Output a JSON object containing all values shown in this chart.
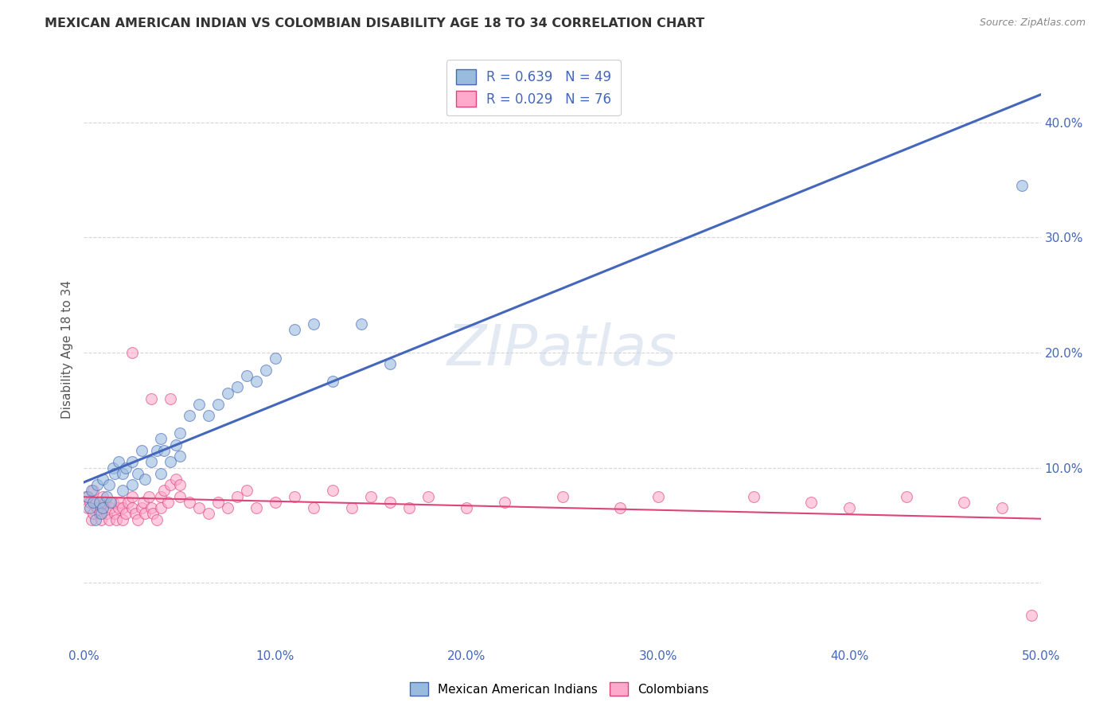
{
  "title": "MEXICAN AMERICAN INDIAN VS COLOMBIAN DISABILITY AGE 18 TO 34 CORRELATION CHART",
  "source": "Source: ZipAtlas.com",
  "ylabel": "Disability Age 18 to 34",
  "xlim": [
    0.0,
    0.5
  ],
  "ylim": [
    -0.055,
    0.46
  ],
  "blue_color": "#99BBDD",
  "pink_color": "#FFAACC",
  "blue_line_color": "#4466BB",
  "pink_line_color": "#DD4477",
  "legend1_R": "0.639",
  "legend1_N": "49",
  "legend2_R": "0.029",
  "legend2_N": "76",
  "watermark_text": "ZIPatlas",
  "mexican_x": [
    0.002,
    0.003,
    0.004,
    0.005,
    0.006,
    0.007,
    0.008,
    0.009,
    0.01,
    0.01,
    0.012,
    0.013,
    0.014,
    0.015,
    0.016,
    0.018,
    0.02,
    0.02,
    0.022,
    0.025,
    0.025,
    0.028,
    0.03,
    0.032,
    0.035,
    0.038,
    0.04,
    0.04,
    0.042,
    0.045,
    0.048,
    0.05,
    0.05,
    0.055,
    0.06,
    0.065,
    0.07,
    0.075,
    0.08,
    0.085,
    0.09,
    0.095,
    0.1,
    0.11,
    0.12,
    0.13,
    0.145,
    0.16,
    0.49
  ],
  "mexican_y": [
    0.075,
    0.065,
    0.08,
    0.07,
    0.055,
    0.085,
    0.07,
    0.06,
    0.09,
    0.065,
    0.075,
    0.085,
    0.07,
    0.1,
    0.095,
    0.105,
    0.095,
    0.08,
    0.1,
    0.105,
    0.085,
    0.095,
    0.115,
    0.09,
    0.105,
    0.115,
    0.125,
    0.095,
    0.115,
    0.105,
    0.12,
    0.13,
    0.11,
    0.145,
    0.155,
    0.145,
    0.155,
    0.165,
    0.17,
    0.18,
    0.175,
    0.185,
    0.195,
    0.22,
    0.225,
    0.175,
    0.225,
    0.19,
    0.345
  ],
  "colombian_x": [
    0.001,
    0.002,
    0.003,
    0.004,
    0.005,
    0.005,
    0.006,
    0.007,
    0.008,
    0.009,
    0.01,
    0.01,
    0.011,
    0.012,
    0.013,
    0.014,
    0.015,
    0.016,
    0.017,
    0.018,
    0.019,
    0.02,
    0.02,
    0.022,
    0.023,
    0.025,
    0.025,
    0.027,
    0.028,
    0.03,
    0.031,
    0.032,
    0.034,
    0.035,
    0.036,
    0.038,
    0.04,
    0.04,
    0.042,
    0.044,
    0.045,
    0.048,
    0.05,
    0.05,
    0.055,
    0.06,
    0.065,
    0.07,
    0.075,
    0.08,
    0.085,
    0.09,
    0.1,
    0.11,
    0.12,
    0.13,
    0.14,
    0.15,
    0.16,
    0.17,
    0.18,
    0.2,
    0.22,
    0.25,
    0.28,
    0.3,
    0.35,
    0.38,
    0.4,
    0.43,
    0.46,
    0.48,
    0.025,
    0.035,
    0.045,
    0.495
  ],
  "colombian_y": [
    0.075,
    0.065,
    0.07,
    0.055,
    0.06,
    0.08,
    0.07,
    0.065,
    0.06,
    0.055,
    0.065,
    0.075,
    0.07,
    0.06,
    0.055,
    0.065,
    0.07,
    0.06,
    0.055,
    0.065,
    0.07,
    0.065,
    0.055,
    0.06,
    0.07,
    0.065,
    0.075,
    0.06,
    0.055,
    0.065,
    0.07,
    0.06,
    0.075,
    0.065,
    0.06,
    0.055,
    0.065,
    0.075,
    0.08,
    0.07,
    0.085,
    0.09,
    0.085,
    0.075,
    0.07,
    0.065,
    0.06,
    0.07,
    0.065,
    0.075,
    0.08,
    0.065,
    0.07,
    0.075,
    0.065,
    0.08,
    0.065,
    0.075,
    0.07,
    0.065,
    0.075,
    0.065,
    0.07,
    0.075,
    0.065,
    0.075,
    0.075,
    0.07,
    0.065,
    0.075,
    0.07,
    0.065,
    0.2,
    0.16,
    0.16,
    -0.028
  ]
}
